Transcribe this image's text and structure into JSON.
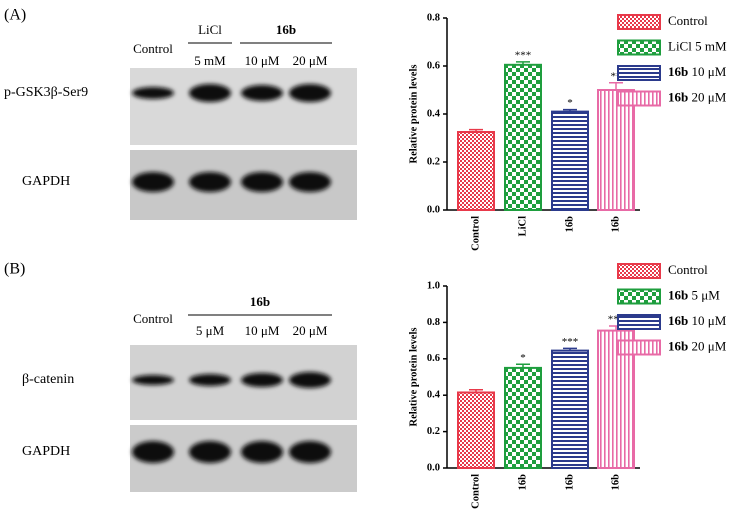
{
  "chart_data": [
    {
      "type": "bar",
      "ylabel": "Relative protein levels",
      "categories": [
        "Control",
        "LiCl",
        "16b",
        "16b"
      ],
      "values": [
        0.325,
        0.605,
        0.41,
        0.5
      ],
      "errors": [
        0.01,
        0.012,
        0.008,
        0.03
      ],
      "annotations": [
        null,
        "***",
        "*",
        "**"
      ],
      "colors": [
        "#e8394a",
        "#1e9e3e",
        "#2b3a8c",
        "#e86aa6"
      ],
      "patterns": [
        "checker-small",
        "checker-large",
        "h-stripes",
        "v-stripes"
      ],
      "legend": [
        {
          "name": "Control"
        },
        {
          "name": "LiCl",
          "dose": "5 mM"
        },
        {
          "name": "16b",
          "dose": "10 μM",
          "bold": true
        },
        {
          "name": "16b",
          "dose": "20 μM",
          "bold": true
        }
      ],
      "ylim": [
        0,
        0.8
      ],
      "yticks": [
        {
          "value": 0,
          "label": "0.0"
        },
        {
          "value": 0.2,
          "label": "0.2"
        },
        {
          "value": 0.4,
          "label": "0.4"
        },
        {
          "value": 0.6,
          "label": "0.6"
        },
        {
          "value": 0.8,
          "label": "0.8"
        }
      ]
    },
    {
      "type": "bar",
      "ylabel": "Relative protein levels",
      "categories": [
        "Control",
        "16b",
        "16b",
        "16b"
      ],
      "values": [
        0.415,
        0.55,
        0.645,
        0.755
      ],
      "errors": [
        0.015,
        0.02,
        0.012,
        0.025
      ],
      "annotations": [
        null,
        "*",
        "***",
        "***"
      ],
      "colors": [
        "#e8394a",
        "#1e9e3e",
        "#2b3a8c",
        "#e86aa6"
      ],
      "patterns": [
        "checker-small",
        "checker-large",
        "h-stripes",
        "v-stripes"
      ],
      "legend": [
        {
          "name": "Control"
        },
        {
          "name": "16b",
          "dose": "5 μM",
          "bold": true
        },
        {
          "name": "16b",
          "dose": "10 μM",
          "bold": true
        },
        {
          "name": "16b",
          "dose": "20 μM",
          "bold": true
        }
      ],
      "ylim": [
        0,
        1.0
      ],
      "yticks": [
        {
          "value": 0,
          "label": "0.0"
        },
        {
          "value": 0.2,
          "label": "0.2"
        },
        {
          "value": 0.4,
          "label": "0.4"
        },
        {
          "value": 0.6,
          "label": "0.6"
        },
        {
          "value": 0.8,
          "label": "0.8"
        },
        {
          "value": 1.0,
          "label": "1.0"
        }
      ]
    }
  ],
  "blots": [
    {
      "label": "(A)",
      "control": "Control",
      "groups": [
        {
          "name": "LiCl",
          "doses": [
            "5 mM"
          ]
        },
        {
          "name": "16b",
          "bold": true,
          "doses": [
            "10 μM",
            "20 μM"
          ]
        }
      ],
      "rows": [
        "p-GSK3β-Ser9",
        "GAPDH"
      ]
    },
    {
      "label": "(B)",
      "control": "Control",
      "groups": [
        {
          "name": "16b",
          "bold": true,
          "doses": [
            "5 μM",
            "10 μM",
            "20 μM"
          ]
        }
      ],
      "rows": [
        "β-catenin",
        "GAPDH"
      ]
    }
  ]
}
